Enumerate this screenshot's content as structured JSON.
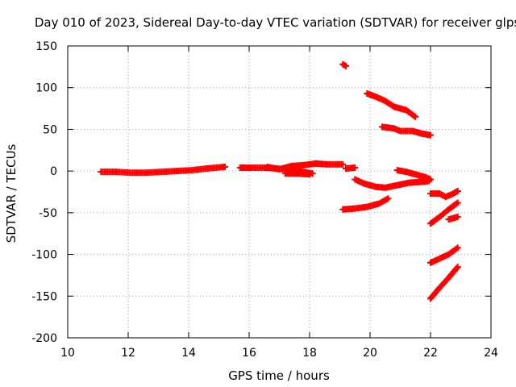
{
  "chart_data": {
    "type": "scatter",
    "title": "Day 010 of 2023, Sidereal Day-to-day VTEC variation (SDTVAR) for receiver glps",
    "xlabel": "GPS time / hours",
    "ylabel": "SDTVAR / TECUs",
    "xlim": [
      10,
      24
    ],
    "ylim": [
      -200,
      150
    ],
    "xticks": [
      10,
      12,
      14,
      16,
      18,
      20,
      22,
      24
    ],
    "yticks": [
      -200,
      -150,
      -100,
      -50,
      0,
      50,
      100,
      150
    ],
    "grid": true,
    "marker": "plus",
    "color": "#ff0000",
    "series": [
      {
        "name": "arc-1",
        "points": [
          [
            11.1,
            -1
          ],
          [
            11.6,
            -1
          ],
          [
            12.1,
            -2
          ],
          [
            12.6,
            -2
          ],
          [
            13.1,
            -1
          ],
          [
            13.6,
            0
          ],
          [
            14.1,
            1
          ],
          [
            14.6,
            3
          ],
          [
            15.2,
            5
          ]
        ]
      },
      {
        "name": "arc-2",
        "points": [
          [
            15.7,
            4
          ],
          [
            16.1,
            4
          ],
          [
            16.5,
            4
          ],
          [
            16.9,
            3
          ],
          [
            17.2,
            2
          ],
          [
            17.6,
            0
          ],
          [
            18.1,
            -3
          ]
        ]
      },
      {
        "name": "arc-3",
        "points": [
          [
            16.6,
            5
          ],
          [
            17.0,
            2
          ],
          [
            17.4,
            6
          ],
          [
            17.8,
            7
          ],
          [
            18.2,
            9
          ],
          [
            18.6,
            8
          ],
          [
            19.1,
            8
          ]
        ]
      },
      {
        "name": "arc-4",
        "points": [
          [
            17.2,
            -3
          ],
          [
            17.6,
            -3
          ],
          [
            18.0,
            -4
          ]
        ]
      },
      {
        "name": "arc-5",
        "points": [
          [
            19.2,
            3
          ],
          [
            19.5,
            4
          ]
        ]
      },
      {
        "name": "arc-6",
        "points": [
          [
            19.1,
            128
          ],
          [
            19.2,
            126
          ]
        ]
      },
      {
        "name": "arc-7",
        "points": [
          [
            19.9,
            93
          ],
          [
            20.2,
            89
          ],
          [
            20.5,
            84
          ],
          [
            20.8,
            77
          ],
          [
            21.2,
            73
          ],
          [
            21.5,
            65
          ]
        ]
      },
      {
        "name": "arc-8",
        "points": [
          [
            20.4,
            53
          ],
          [
            20.8,
            51
          ],
          [
            21.0,
            48
          ],
          [
            21.4,
            48
          ],
          [
            21.7,
            45
          ],
          [
            22.0,
            43
          ]
        ]
      },
      {
        "name": "arc-9",
        "points": [
          [
            19.5,
            -10
          ],
          [
            19.8,
            -15
          ],
          [
            20.2,
            -19
          ],
          [
            20.5,
            -20
          ],
          [
            20.9,
            -17
          ],
          [
            21.3,
            -14
          ],
          [
            21.7,
            -13
          ],
          [
            21.95,
            -12
          ]
        ]
      },
      {
        "name": "arc-10",
        "points": [
          [
            20.9,
            1
          ],
          [
            21.2,
            -1
          ],
          [
            21.5,
            -4
          ],
          [
            21.8,
            -7
          ],
          [
            22.0,
            -10
          ]
        ]
      },
      {
        "name": "arc-11",
        "points": [
          [
            19.1,
            -46
          ],
          [
            19.5,
            -45
          ],
          [
            19.9,
            -43
          ],
          [
            20.3,
            -39
          ],
          [
            20.6,
            -33
          ]
        ]
      },
      {
        "name": "arc-12",
        "points": [
          [
            22.0,
            -27
          ],
          [
            22.3,
            -27
          ],
          [
            22.5,
            -31
          ],
          [
            22.7,
            -28
          ],
          [
            22.9,
            -24
          ]
        ]
      },
      {
        "name": "arc-13",
        "points": [
          [
            22.0,
            -63
          ],
          [
            22.3,
            -55
          ],
          [
            22.6,
            -46
          ],
          [
            22.9,
            -38
          ]
        ]
      },
      {
        "name": "arc-14",
        "points": [
          [
            22.6,
            -58
          ],
          [
            22.9,
            -55
          ]
        ]
      },
      {
        "name": "arc-15",
        "points": [
          [
            22.0,
            -110
          ],
          [
            22.3,
            -105
          ],
          [
            22.6,
            -100
          ],
          [
            22.9,
            -92
          ]
        ]
      },
      {
        "name": "arc-16",
        "points": [
          [
            22.0,
            -153
          ],
          [
            22.3,
            -140
          ],
          [
            22.6,
            -128
          ],
          [
            22.9,
            -115
          ]
        ]
      }
    ]
  }
}
